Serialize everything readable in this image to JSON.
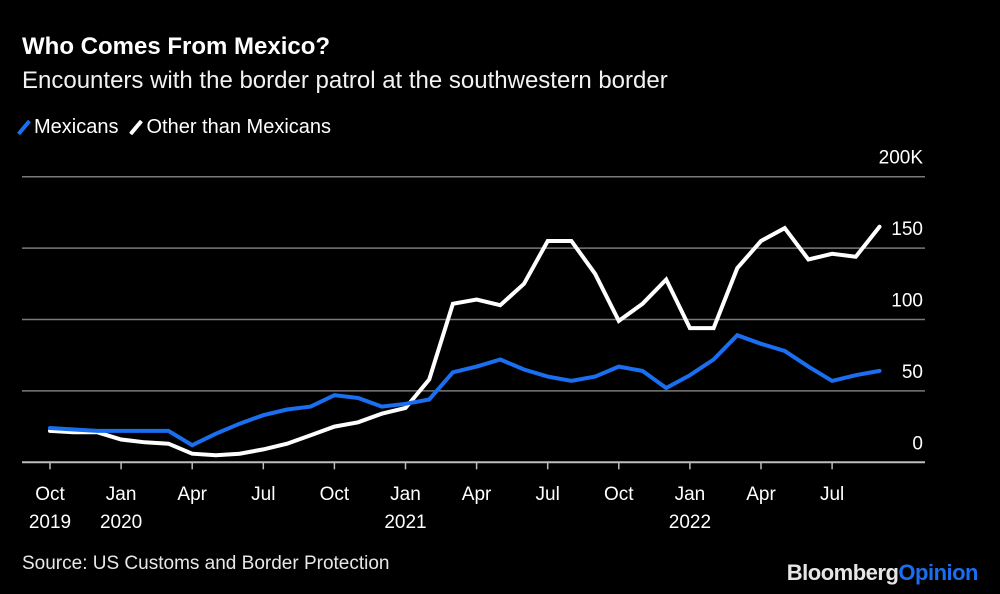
{
  "header": {
    "title": "Who Comes From Mexico?",
    "subtitle": "Encounters with the border patrol at the southwestern border"
  },
  "footer": {
    "source": "Source: US Customs and Border Protection",
    "logo_part1": "Bloomberg",
    "logo_part2": "Opinion"
  },
  "colors": {
    "mexicans": "#1a6ff0",
    "other": "#ffffff",
    "grid": "#7a7a7a",
    "background": "#000000"
  },
  "chart_data": {
    "type": "line",
    "title": "Who Comes From Mexico?",
    "subtitle": "Encounters with the border patrol at the southwestern border",
    "legend_position": "top-left",
    "grid": true,
    "ylim": [
      0,
      200
    ],
    "y_unit": "K",
    "y_ticks": [
      "0",
      "50",
      "100",
      "150",
      "200K"
    ],
    "y_tick_values": [
      0,
      50,
      100,
      150,
      200
    ],
    "x": [
      "2019-10",
      "2019-11",
      "2019-12",
      "2020-01",
      "2020-02",
      "2020-03",
      "2020-04",
      "2020-05",
      "2020-06",
      "2020-07",
      "2020-08",
      "2020-09",
      "2020-10",
      "2020-11",
      "2020-12",
      "2021-01",
      "2021-02",
      "2021-03",
      "2021-04",
      "2021-05",
      "2021-06",
      "2021-07",
      "2021-08",
      "2021-09",
      "2021-10",
      "2021-11",
      "2021-12",
      "2022-01",
      "2022-02",
      "2022-03",
      "2022-04",
      "2022-05",
      "2022-06",
      "2022-07",
      "2022-08",
      "2022-09"
    ],
    "x_ticks": [
      {
        "index": 0,
        "month": "Oct",
        "year": "2019"
      },
      {
        "index": 3,
        "month": "Jan",
        "year": "2020"
      },
      {
        "index": 6,
        "month": "Apr",
        "year": ""
      },
      {
        "index": 9,
        "month": "Jul",
        "year": ""
      },
      {
        "index": 12,
        "month": "Oct",
        "year": ""
      },
      {
        "index": 15,
        "month": "Jan",
        "year": "2021"
      },
      {
        "index": 18,
        "month": "Apr",
        "year": ""
      },
      {
        "index": 21,
        "month": "Jul",
        "year": ""
      },
      {
        "index": 24,
        "month": "Oct",
        "year": ""
      },
      {
        "index": 27,
        "month": "Jan",
        "year": "2022"
      },
      {
        "index": 30,
        "month": "Apr",
        "year": ""
      },
      {
        "index": 33,
        "month": "Jul",
        "year": ""
      }
    ],
    "series": [
      {
        "name": "Mexicans",
        "color": "#1a6ff0",
        "values": [
          24,
          23,
          22,
          22,
          22,
          22,
          12,
          20,
          27,
          33,
          37,
          39,
          47,
          45,
          39,
          41,
          44,
          63,
          67,
          72,
          65,
          60,
          57,
          60,
          67,
          64,
          52,
          61,
          72,
          89,
          83,
          78,
          67,
          57,
          61,
          64
        ]
      },
      {
        "name": "Other than Mexicans",
        "color": "#ffffff",
        "values": [
          22,
          21,
          21,
          16,
          14,
          13,
          6,
          5,
          6,
          9,
          13,
          19,
          25,
          28,
          34,
          38,
          58,
          111,
          114,
          110,
          125,
          155,
          155,
          132,
          99,
          111,
          128,
          94,
          94,
          136,
          155,
          164,
          142,
          146,
          144,
          165
        ]
      }
    ]
  }
}
